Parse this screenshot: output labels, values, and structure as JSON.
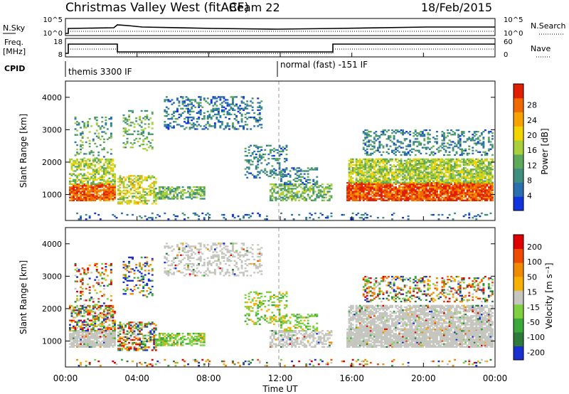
{
  "header": {
    "station": "Christmas Valley West (fitACF)",
    "beam": "Beam 22",
    "date": "18/Feb/2015"
  },
  "status_panels": {
    "nsky_label": "N.Sky",
    "nsky_ticks": [
      "10^5",
      "10^0"
    ],
    "nsearch_label": "N.Search",
    "nsearch_ticks": [
      "10^5",
      "10^0"
    ],
    "freq_label": "Freq.",
    "freq_unit": "[MHz]",
    "freq_ticks": [
      "18",
      "8"
    ],
    "nave_label": "Nave",
    "nave_ticks": [
      "60",
      "0"
    ],
    "cpid_label": "CPID",
    "cpid_modes": [
      "themis 3300 IF",
      "normal (fast) -151 IF"
    ]
  },
  "chart_data": [
    {
      "type": "heatmap",
      "name": "power",
      "ylabel": "Slant Range [km]",
      "yticks": [
        "1000",
        "2000",
        "3000",
        "4000"
      ],
      "ylim": [
        200,
        4500
      ],
      "colorbar_label": "Power [dB]",
      "colorbar_ticks": [
        "4",
        "8",
        "12",
        "16",
        "20",
        "24",
        "28"
      ],
      "colors": [
        "#1035e0",
        "#2a6fb0",
        "#3f8f7f",
        "#5ea95a",
        "#a8d03a",
        "#f2d400",
        "#f6a300",
        "#f06a00",
        "#e01e00"
      ]
    },
    {
      "type": "heatmap",
      "name": "velocity",
      "ylabel": "Slant Range [km]",
      "yticks": [
        "1000",
        "2000",
        "3000",
        "4000"
      ],
      "ylim": [
        200,
        4500
      ],
      "colorbar_label": "Velocity [m s⁻¹]",
      "colorbar_ticks": [
        "200",
        "100",
        "50",
        "15",
        "-15",
        "-50",
        "-100",
        "-200"
      ],
      "colors": [
        "#1a2fd0",
        "#2e7a3a",
        "#3aa83a",
        "#7fd040",
        "#c6c6c0",
        "#f5b000",
        "#f08a00",
        "#ee4a00",
        "#e00000"
      ]
    }
  ],
  "time_axis": {
    "label": "Time UT",
    "ticks": [
      "00:00",
      "04:00",
      "08:00",
      "12:00",
      "16:00",
      "20:00",
      "00:00"
    ]
  }
}
